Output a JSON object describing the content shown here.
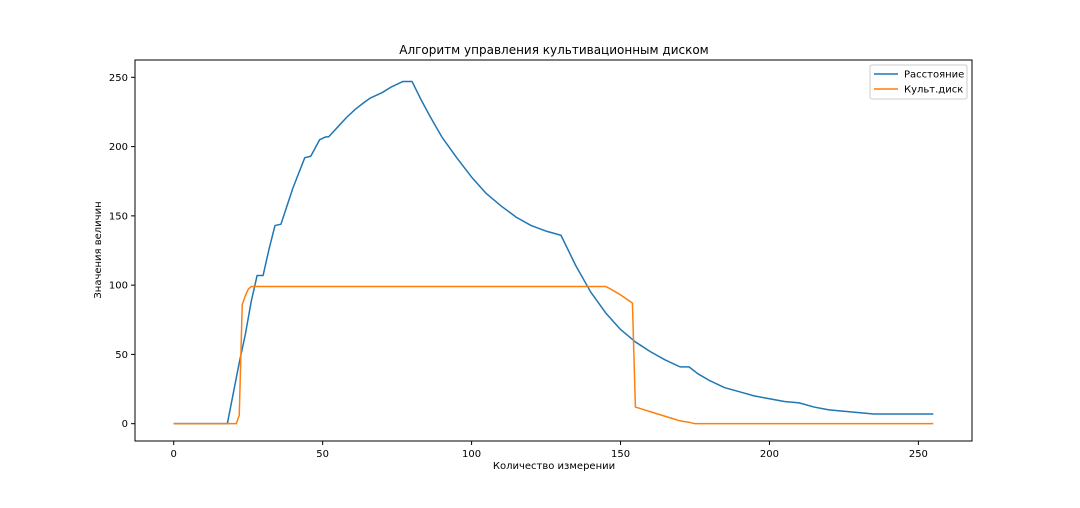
{
  "chart_data": {
    "type": "line",
    "title": "Алгоритм управления культивационным диском",
    "xlabel": "Количество измерении",
    "ylabel": "Значения величин",
    "xlim": [
      -13,
      268
    ],
    "ylim": [
      -12.5,
      262.5
    ],
    "xticks": [
      0,
      50,
      100,
      150,
      200,
      250
    ],
    "yticks": [
      0,
      50,
      100,
      150,
      200,
      250
    ],
    "xtick_labels": [
      "0",
      "50",
      "100",
      "150",
      "200",
      "250"
    ],
    "ytick_labels": [
      "0",
      "50",
      "100",
      "150",
      "200",
      "250"
    ],
    "grid": false,
    "legend_position": "top-right",
    "series": [
      {
        "name": "Расстояние",
        "color": "#1f77b4",
        "x": [
          0,
          5,
          10,
          15,
          18,
          20,
          22,
          24,
          26,
          28,
          30,
          32,
          34,
          36,
          38,
          40,
          42,
          44,
          46,
          47,
          49,
          51,
          52,
          55,
          58,
          61,
          64,
          66,
          67,
          70,
          73,
          76,
          77,
          80,
          83,
          86,
          90,
          95,
          100,
          105,
          110,
          115,
          120,
          125,
          130,
          135,
          140,
          145,
          150,
          155,
          160,
          165,
          170,
          173,
          176,
          180,
          185,
          190,
          195,
          200,
          205,
          210,
          215,
          220,
          225,
          230,
          235,
          240,
          245,
          250,
          255
        ],
        "y": [
          0,
          0,
          0,
          0,
          0,
          22,
          44,
          64,
          88,
          107,
          107,
          126,
          143,
          144,
          157,
          170,
          181,
          192,
          193,
          197,
          205,
          207,
          207,
          214,
          221,
          227,
          232,
          235,
          236,
          239,
          243,
          246,
          247,
          247,
          234,
          222,
          207,
          192,
          178,
          166,
          157,
          149,
          143,
          139,
          136,
          114,
          95,
          80,
          68,
          59,
          52,
          46,
          41,
          41,
          36,
          31,
          26,
          23,
          20,
          18,
          16,
          15,
          12,
          10,
          9,
          8,
          7,
          7,
          7,
          7,
          7
        ]
      },
      {
        "name": "Культ.диск",
        "color": "#ff7f0e",
        "x": [
          0,
          5,
          10,
          15,
          20,
          21,
          22,
          23,
          24,
          25,
          26,
          30,
          50,
          100,
          145,
          146,
          150,
          154,
          155,
          158,
          161,
          164,
          167,
          170,
          173,
          175,
          180,
          200,
          220,
          240,
          255
        ],
        "y": [
          0,
          0,
          0,
          0,
          0,
          0,
          6,
          86,
          92,
          97,
          99,
          99,
          99,
          99,
          99,
          98,
          93,
          87,
          12,
          10,
          8,
          6,
          4,
          2,
          1,
          0,
          0,
          0,
          0,
          0,
          0
        ]
      }
    ]
  }
}
